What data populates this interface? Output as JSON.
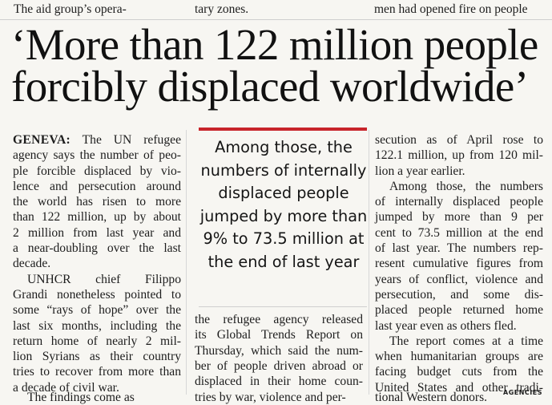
{
  "top_fragments": {
    "left": "The aid group’s opera-",
    "middle": "tary zones.",
    "right": "men had opened fire on people"
  },
  "headline": "‘More than 122 million people forcibly displaced worldwide’",
  "column1": {
    "dateline": "GENEVA:",
    "p1_lines": [
      " The UN refugee",
      "agency says the number of peo-",
      "ple forcible displaced by vio-",
      "lence and persecution around",
      "the world has risen to more",
      "than 122 million, up by about",
      "2 million from last year and",
      "a near-doubling over the last",
      "decade."
    ],
    "p2_lines": [
      "UNHCR chief Filippo",
      "Grandi nonetheless pointed to",
      "some “rays of hope” over the",
      "last six months, including the",
      "return home of nearly 2 mil-",
      "lion Syrians as their country",
      "tries to recover from more than",
      "a decade of civil war."
    ],
    "cut_line": "The findings come as"
  },
  "pull_quote": "Among those, the numbers of internally displaced people jumped by more than 9% to 73.5 million at the end of last year",
  "column2": {
    "lines": [
      "the refugee agency released",
      "its Global Trends Report on",
      "Thursday, which said the num-",
      "ber of people driven abroad or",
      "displaced in their home coun-"
    ],
    "cut_line": "tries by war, violence and per-"
  },
  "column3": {
    "p1_lines": [
      "secution as of April rose to",
      "122.1 million, up from 120 mil-",
      "lion a year earlier."
    ],
    "p2_lines": [
      "Among those, the numbers",
      "of internally displaced people",
      "jumped by more than 9 per",
      "cent to 73.5 million at the end",
      "of last year. The numbers rep-",
      "resent cumulative figures from",
      "years of conflict, violence and",
      "persecution, and some dis-",
      "placed people returned home",
      "last year even as others fled."
    ],
    "p3_lines": [
      "The report comes at a time",
      "when humanitarian groups are",
      "facing budget cuts from the",
      "United States and other tradi-"
    ],
    "cut_line": "tional Western donors."
  },
  "credit": "AGENCIES"
}
